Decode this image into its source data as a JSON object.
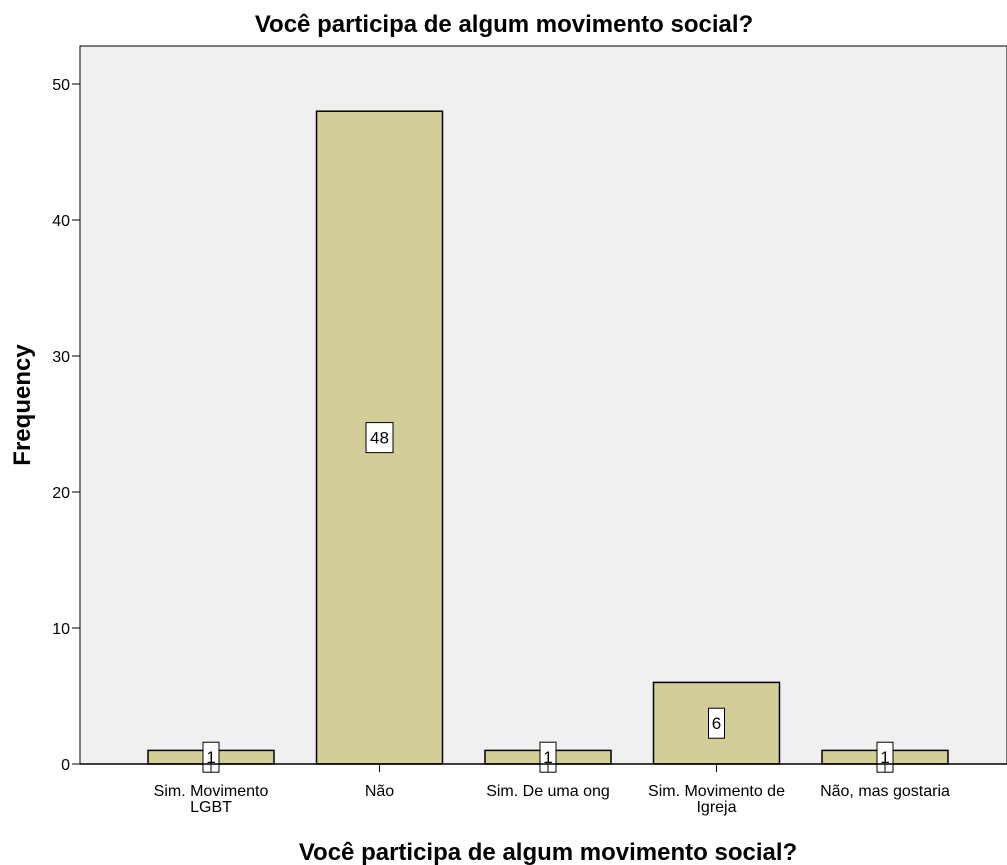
{
  "chart_data": {
    "type": "bar",
    "title": "Você participa de algum movimento social?",
    "xlabel": "Você participa de algum movimento social?",
    "ylabel": "Frequency",
    "categories": [
      [
        "Sim. Movimento",
        "LGBT"
      ],
      [
        "Não"
      ],
      [
        "Sim. De uma ong"
      ],
      [
        "Sim. Movimento de",
        "Igreja"
      ],
      [
        "Não, mas gostaria"
      ]
    ],
    "values": [
      1,
      48,
      1,
      6,
      1
    ],
    "data_labels": [
      "1",
      "48",
      "1",
      "6",
      "1"
    ],
    "ylim": [
      0,
      52
    ],
    "yticks": [
      0,
      10,
      20,
      30,
      40,
      50
    ],
    "grid": false,
    "legend": "none",
    "colors": {
      "bar_fill": "#d3ce97",
      "bar_stroke": "#000000",
      "plot_background": "#f0f0f0"
    }
  }
}
